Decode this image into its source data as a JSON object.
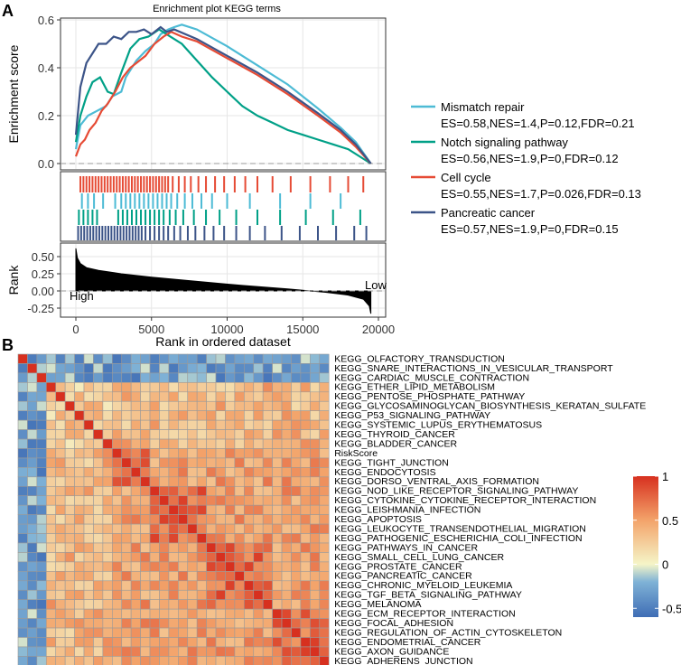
{
  "panels": {
    "a": "A",
    "b": "B"
  },
  "chart_data": [
    {
      "type": "line",
      "title": "Enrichment plot KEGG terms",
      "ylabel": "Enrichment score",
      "xlabel": "Rank in ordered dataset",
      "xlim": [
        0,
        20000
      ],
      "ylim": [
        0,
        0.6
      ],
      "yticks": [
        "0.0",
        "0.2",
        "0.4",
        "0.6"
      ],
      "xticks": [
        "0",
        "5000",
        "10000",
        "15000",
        "20000"
      ],
      "series": [
        {
          "name": "Mismatch repair",
          "stats": "ES=0.58,NES=1.4,P=0.12,FDR=0.21",
          "color": "#4DBBD5",
          "x": [
            0,
            300,
            800,
            1400,
            2000,
            2400,
            3000,
            3300,
            4000,
            4600,
            5200,
            5600,
            6100,
            6500,
            7000,
            8000,
            10000,
            12000,
            14000,
            16000,
            17500,
            18500,
            19500
          ],
          "y": [
            0.06,
            0.16,
            0.2,
            0.22,
            0.24,
            0.28,
            0.3,
            0.36,
            0.43,
            0.47,
            0.5,
            0.54,
            0.56,
            0.57,
            0.58,
            0.56,
            0.49,
            0.41,
            0.33,
            0.23,
            0.15,
            0.09,
            0.0
          ]
        },
        {
          "name": "Notch signaling pathway",
          "stats": "ES=0.56,NES=1.9,P=0,FDR=0.12",
          "color": "#00A087",
          "x": [
            0,
            300,
            700,
            1100,
            1600,
            2100,
            2500,
            3000,
            3600,
            4200,
            4800,
            5500,
            6000,
            7000,
            8000,
            9000,
            10000,
            11000,
            12000,
            13000,
            14000,
            15000,
            16000,
            17000,
            18000,
            19500
          ],
          "y": [
            0.09,
            0.2,
            0.28,
            0.34,
            0.36,
            0.3,
            0.29,
            0.38,
            0.48,
            0.52,
            0.53,
            0.56,
            0.54,
            0.5,
            0.43,
            0.36,
            0.3,
            0.24,
            0.2,
            0.17,
            0.14,
            0.12,
            0.1,
            0.08,
            0.06,
            0.0
          ]
        },
        {
          "name": "Cell cycle",
          "stats": "ES=0.55,NES=1.7,P=0.026,FDR=0.13",
          "color": "#E64B35",
          "x": [
            0,
            300,
            600,
            900,
            1300,
            1700,
            2100,
            2600,
            3100,
            3600,
            4000,
            4600,
            5200,
            5800,
            6300,
            7000,
            8000,
            10000,
            12000,
            14000,
            16000,
            17500,
            18500,
            19500
          ],
          "y": [
            0.03,
            0.08,
            0.1,
            0.14,
            0.17,
            0.22,
            0.25,
            0.3,
            0.36,
            0.4,
            0.42,
            0.45,
            0.5,
            0.53,
            0.55,
            0.53,
            0.51,
            0.44,
            0.37,
            0.29,
            0.2,
            0.13,
            0.07,
            0.0
          ]
        },
        {
          "name": "Pancreatic cancer",
          "stats": "ES=0.57,NES=1.9,P=0,FDR=0.15",
          "color": "#3C5488",
          "x": [
            0,
            300,
            700,
            1100,
            1500,
            2000,
            2500,
            3000,
            3500,
            4000,
            4500,
            5000,
            5600,
            6000,
            6500,
            8000,
            10000,
            12000,
            14000,
            16000,
            17500,
            18500,
            19500
          ],
          "y": [
            0.12,
            0.32,
            0.42,
            0.46,
            0.5,
            0.5,
            0.53,
            0.52,
            0.55,
            0.55,
            0.56,
            0.54,
            0.57,
            0.55,
            0.56,
            0.52,
            0.45,
            0.38,
            0.3,
            0.21,
            0.14,
            0.08,
            0.0
          ]
        }
      ],
      "legend_position": "right"
    },
    {
      "type": "barcode",
      "series_order": [
        "Cell cycle",
        "Mismatch repair",
        "Notch signaling pathway",
        "Pancreatic cancer"
      ],
      "hits": [
        [
          300,
          500,
          700,
          900,
          1100,
          1300,
          1500,
          1700,
          1900,
          2100,
          2300,
          2500,
          2700,
          2900,
          3100,
          3300,
          3500,
          3700,
          3900,
          4100,
          4300,
          4500,
          4700,
          4900,
          5100,
          5300,
          5500,
          5700,
          5900,
          6100,
          6400,
          6800,
          7200,
          7600,
          8100,
          8600,
          9200,
          9800,
          10500,
          11200,
          12000,
          13000,
          14200,
          15500,
          16800,
          18000,
          19000
        ],
        [
          400,
          800,
          1200,
          1800,
          2600,
          3000,
          3300,
          3600,
          3900,
          4200,
          4500,
          4800,
          5100,
          5400,
          5700,
          6000,
          6300,
          6700,
          7200,
          7700,
          8300,
          9000,
          10000,
          11500,
          13500,
          15500,
          17500
        ],
        [
          200,
          500,
          800,
          1100,
          1400,
          2800,
          3100,
          3400,
          3700,
          4000,
          4300,
          4600,
          4900,
          5200,
          5500,
          5800,
          6200,
          6600,
          7100,
          7800,
          8600,
          9500,
          10600,
          12000,
          13500,
          15200,
          17000,
          18800
        ],
        [
          150,
          350,
          550,
          750,
          950,
          1150,
          1350,
          1550,
          1750,
          1950,
          2150,
          2350,
          2550,
          2750,
          2950,
          3150,
          3350,
          3550,
          3750,
          3950,
          4150,
          4350,
          4600,
          4900,
          5200,
          5500,
          5800,
          6100,
          6500,
          6900,
          7400,
          7900,
          8500,
          9100,
          9800,
          10600,
          11500,
          12500,
          13600,
          14800,
          16000,
          17200,
          18400,
          19200
        ]
      ]
    },
    {
      "type": "area",
      "ylabel": "Rank",
      "xlim": [
        0,
        20000
      ],
      "ylim": [
        -0.35,
        0.65
      ],
      "yticks": [
        "0.50",
        "0.25",
        "0.00",
        "-0.25"
      ],
      "x": [
        0,
        100,
        300,
        700,
        1500,
        3000,
        5000,
        8000,
        11000,
        14000,
        16500,
        18000,
        19000,
        19400,
        19500
      ],
      "y": [
        0.62,
        0.48,
        0.4,
        0.34,
        0.3,
        0.25,
        0.2,
        0.14,
        0.08,
        0.03,
        -0.02,
        -0.06,
        -0.12,
        -0.22,
        -0.33
      ],
      "annotations": {
        "high": "High",
        "low": "Low"
      }
    },
    {
      "type": "heatmap",
      "row_labels": [
        "KEGG_OLFACTORY_TRANSDUCTION",
        "KEGG_SNARE_INTERACTIONS_IN_VESICULAR_TRANSPORT",
        "KEGG_CARDIAC_MUSCLE_CONTRACTION",
        "KEGG_ETHER_LIPID_METABOLISM",
        "KEGG_PENTOSE_PHOSPHATE_PATHWAY",
        "KEGG_GLYCOSAMINOGLYCAN_BIOSYNTHESIS_KERATAN_SULFATE",
        "KEGG_P53_SIGNALING_PATHWAY",
        "KEGG_SYSTEMIC_LUPUS_ERYTHEMATOSUS",
        "KEGG_THYROID_CANCER",
        "KEGG_BLADDER_CANCER",
        "RiskScore",
        "KEGG_TIGHT_JUNCTION",
        "KEGG_ENDOCYTOSIS",
        "KEGG_DORSO_VENTRAL_AXIS_FORMATION",
        "KEGG_NOD_LIKE_RECEPTOR_SIGNALING_PATHWAY",
        "KEGG_CYTOKINE_CYTOKINE_RECEPTOR_INTERACTION",
        "KEGG_LEISHMANIA_INFECTION",
        "KEGG_APOPTOSIS",
        "KEGG_LEUKOCYTE_TRANSENDOTHELIAL_MIGRATION",
        "KEGG_PATHOGENIC_ESCHERICHIA_COLI_INFECTION",
        "KEGG_PATHWAYS_IN_CANCER",
        "KEGG_SMALL_CELL_LUNG_CANCER",
        "KEGG_PROSTATE_CANCER",
        "KEGG_PANCREATIC_CANCER",
        "KEGG_CHRONIC_MYELOID_LEUKEMIA",
        "KEGG_TGF_BETA_SIGNALING_PATHWAY",
        "KEGG_MELANOMA",
        "KEGG_ECM_RECEPTOR_INTERACTION",
        "KEGG_FOCAL_ADHESION",
        "KEGG_REGULATION_OF_ACTIN_CYTOSKELETON",
        "KEGG_ENDOMETRIAL_CANCER",
        "KEGG_AXON_GUIDANCE",
        "KEGG_ADHERENS_JUNCTION"
      ],
      "highlight_label": "RiskScore",
      "highlight_color": "#E8262B",
      "value_range": [
        -0.6,
        1
      ],
      "colorbar_ticks": [
        "1",
        "0.5",
        "0",
        "-0.5"
      ],
      "colorbar_values": [
        1,
        0.5,
        0,
        -0.5
      ],
      "color_stops": [
        "#3F6DB5",
        "#7FB2D6",
        "#F5F5C8",
        "#F3A36A",
        "#D7301F"
      ]
    }
  ]
}
